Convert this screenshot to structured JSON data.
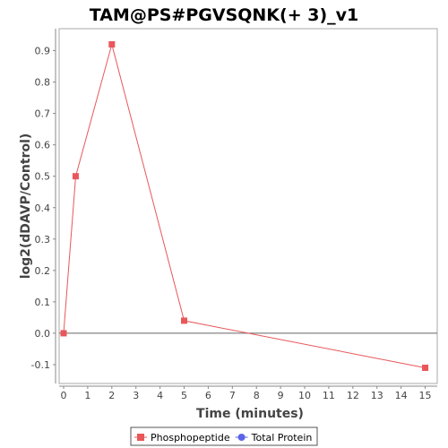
{
  "chart_data": {
    "type": "line",
    "title": "TAM@PS#PGVSQNK(+ 3)_v1",
    "xlabel": "Time (minutes)",
    "ylabel": "log2(dDAVP/Control)",
    "xlim": [
      0,
      15.5
    ],
    "ylim": [
      -0.16,
      0.97
    ],
    "x_ticks": [
      0,
      1,
      2,
      3,
      4,
      5,
      6,
      7,
      8,
      9,
      10,
      11,
      12,
      13,
      14,
      15
    ],
    "y_ticks": [
      -0.1,
      0.0,
      0.1,
      0.2,
      0.3,
      0.4,
      0.5,
      0.6,
      0.7,
      0.8,
      0.9
    ],
    "y_tick_labels": [
      "-0.1",
      "0.0",
      "0.1",
      "0.2",
      "0.3",
      "0.4",
      "0.5",
      "0.6",
      "0.7",
      "0.8",
      "0.9"
    ],
    "grid": false,
    "zero_line": true,
    "legend_position": "bottom",
    "series": [
      {
        "name": "Phosphopeptide",
        "color": "#e8575a",
        "marker": "square",
        "x": [
          0,
          0.5,
          2,
          5,
          15
        ],
        "y": [
          0.0,
          0.5,
          0.92,
          0.04,
          -0.11
        ]
      },
      {
        "name": "Total Protein",
        "color": "#5b63e8",
        "marker": "circle",
        "x": [],
        "y": []
      }
    ]
  }
}
